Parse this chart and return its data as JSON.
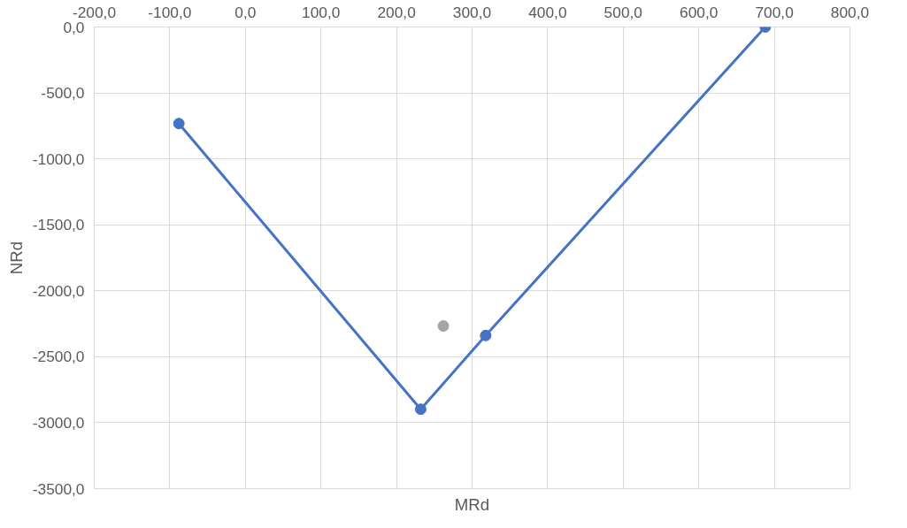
{
  "chart_data": {
    "type": "line",
    "xlabel": "MRd",
    "ylabel": "NRd",
    "xlim": [
      -200,
      800
    ],
    "ylim": [
      -3500,
      0
    ],
    "xticks": [
      {
        "value": -200,
        "label": "-200,0"
      },
      {
        "value": -100,
        "label": "-100,0"
      },
      {
        "value": 0,
        "label": "0,0"
      },
      {
        "value": 100,
        "label": "100,0"
      },
      {
        "value": 200,
        "label": "200,0"
      },
      {
        "value": 300,
        "label": "300,0"
      },
      {
        "value": 400,
        "label": "400,0"
      },
      {
        "value": 500,
        "label": "500,0"
      },
      {
        "value": 600,
        "label": "600,0"
      },
      {
        "value": 700,
        "label": "700,0"
      },
      {
        "value": 800,
        "label": "800,0"
      }
    ],
    "yticks": [
      {
        "value": 0,
        "label": "0,0"
      },
      {
        "value": -500,
        "label": "-500,0"
      },
      {
        "value": -1000,
        "label": "-1000,0"
      },
      {
        "value": -1500,
        "label": "-1500,0"
      },
      {
        "value": -2000,
        "label": "-2000,0"
      },
      {
        "value": -2500,
        "label": "-2500,0"
      },
      {
        "value": -3000,
        "label": "-3000,0"
      },
      {
        "value": -3500,
        "label": "-3500,0"
      }
    ],
    "grid": true,
    "marker": "circle",
    "line_style": "solid",
    "series": [
      {
        "color": "#4472c4",
        "x": [
          -88,
          232,
          318,
          688
        ],
        "values": [
          -732,
          -2898,
          -2339,
          0
        ]
      },
      {
        "type": "scatter",
        "color": "#a5a5a5",
        "x": [
          262
        ],
        "values": [
          -2267
        ]
      }
    ]
  }
}
